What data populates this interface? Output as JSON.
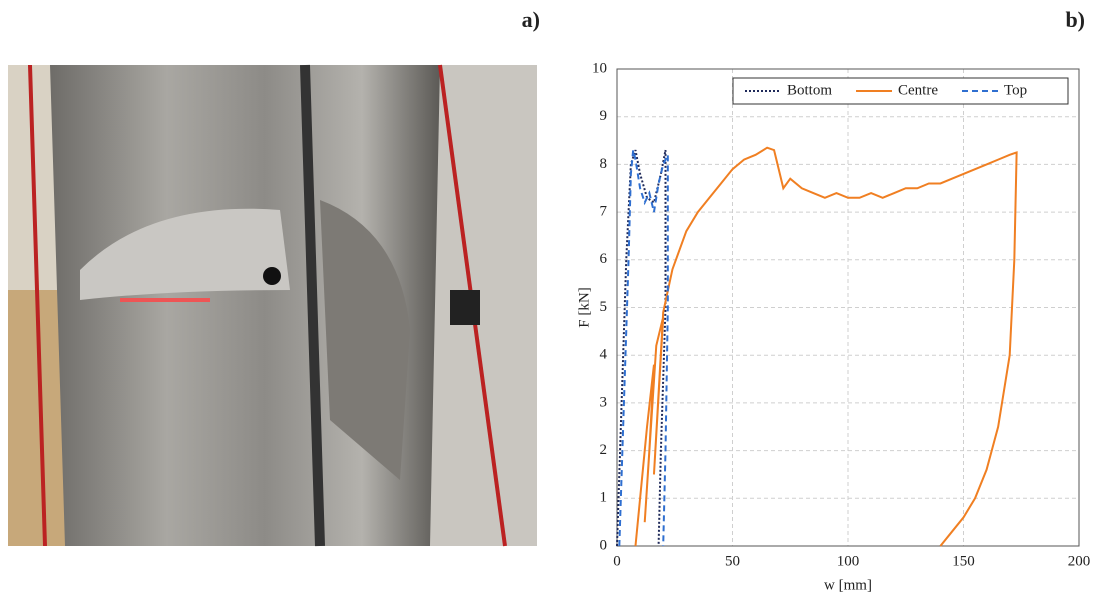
{
  "panel_labels": [
    "a)",
    "b)"
  ],
  "chart_data": {
    "type": "line",
    "xlabel": "w [mm]",
    "ylabel": "F [kN]",
    "xlim": [
      0,
      200
    ],
    "xticks": [
      0,
      50,
      100,
      150,
      200
    ],
    "ylim": [
      0,
      10
    ],
    "yticks": [
      0,
      1,
      2,
      3,
      4,
      5,
      6,
      7,
      8,
      9,
      10
    ],
    "grid": true,
    "legend": "top-right",
    "series": [
      {
        "name": "Bottom",
        "color": "#1f2a5a",
        "dash": "dotted",
        "x": [
          0,
          2,
          4,
          6,
          8,
          10,
          13,
          16,
          19,
          21,
          21,
          19,
          18
        ],
        "values": [
          0,
          3,
          6,
          8,
          8.3,
          7.8,
          7.3,
          7.2,
          7.8,
          8.3,
          5,
          2,
          0
        ]
      },
      {
        "name": "Centre",
        "color": "#f07f22",
        "dash": "solid",
        "x": [
          8,
          13,
          16,
          14,
          12,
          17,
          20,
          16,
          20,
          24,
          30,
          35,
          40,
          45,
          50,
          55,
          60,
          65,
          68,
          70,
          72,
          75,
          80,
          85,
          90,
          95,
          100,
          105,
          110,
          115,
          120,
          125,
          130,
          135,
          140,
          145,
          150,
          155,
          160,
          165,
          170,
          173,
          172,
          170,
          165,
          160,
          155,
          150,
          145,
          140
        ],
        "values": [
          0,
          2.5,
          3.8,
          2,
          0.5,
          4.2,
          4.8,
          1.5,
          4.9,
          5.8,
          6.6,
          7.0,
          7.3,
          7.6,
          7.9,
          8.1,
          8.2,
          8.35,
          8.3,
          7.9,
          7.5,
          7.7,
          7.5,
          7.4,
          7.3,
          7.4,
          7.3,
          7.3,
          7.4,
          7.3,
          7.4,
          7.5,
          7.5,
          7.6,
          7.6,
          7.7,
          7.8,
          7.9,
          8.0,
          8.1,
          8.2,
          8.25,
          6.0,
          4.0,
          2.5,
          1.6,
          1.0,
          0.6,
          0.3,
          0
        ]
      },
      {
        "name": "Top",
        "color": "#2f6fd0",
        "dash": "dashed",
        "x": [
          1,
          3,
          5,
          6,
          7,
          8,
          10,
          12,
          14,
          16,
          18,
          20,
          22,
          22,
          21,
          20
        ],
        "values": [
          0,
          3,
          6,
          7.8,
          8.3,
          8.1,
          7.5,
          7.2,
          7.4,
          7.0,
          7.6,
          8.0,
          8.2,
          5,
          2,
          0
        ]
      }
    ]
  }
}
